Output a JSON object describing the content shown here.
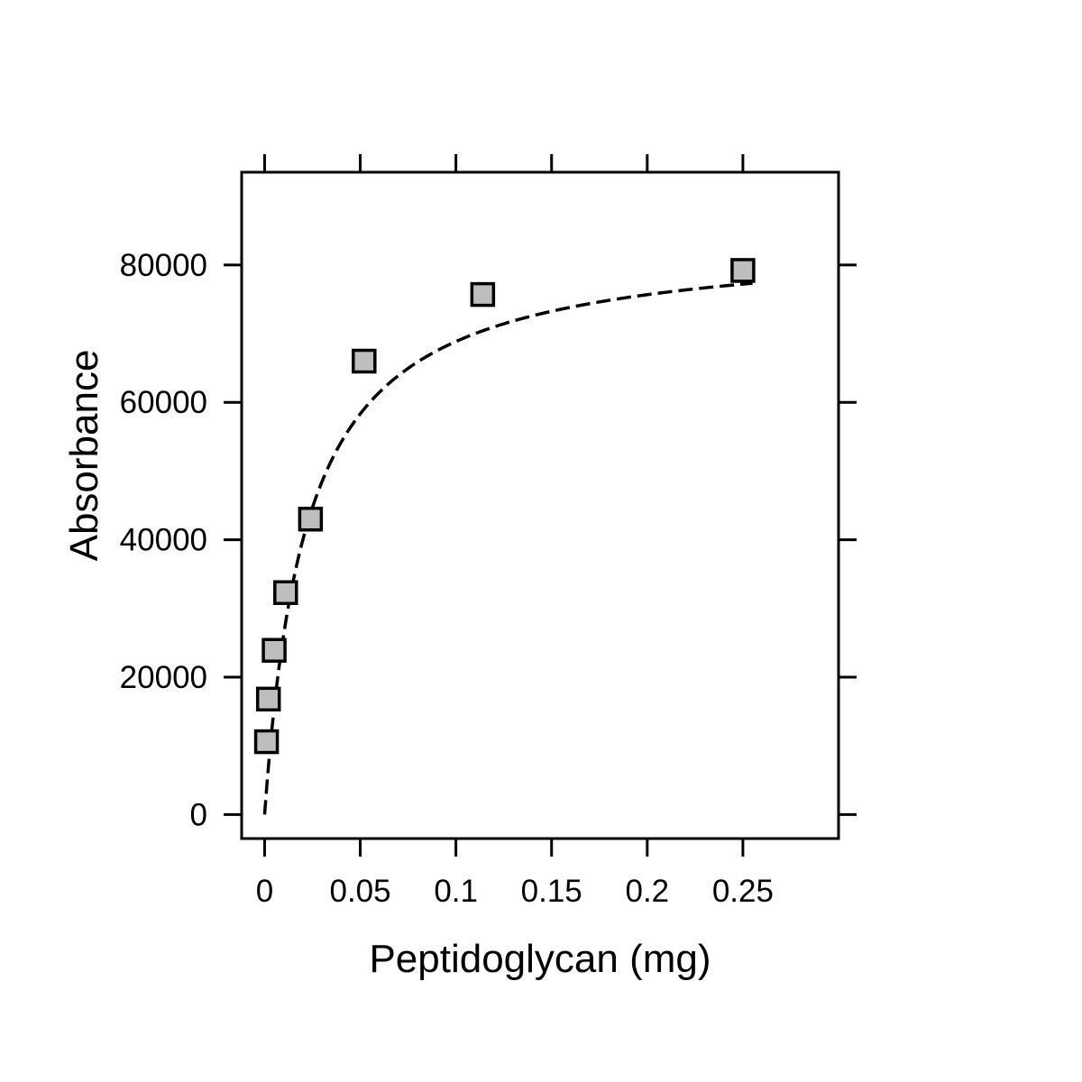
{
  "chart_data": {
    "type": "scatter",
    "title": "",
    "xlabel": "Peptidoglycan (mg)",
    "ylabel": "Absorbance",
    "xlim": [
      -0.012,
      0.3
    ],
    "ylim": [
      -3500,
      93500
    ],
    "x_ticks": [
      0,
      0.05,
      0.1,
      0.15,
      0.2,
      0.25
    ],
    "x_tick_labels": [
      "0",
      "0.05",
      "0.1",
      "0.15",
      "0.2",
      "0.25"
    ],
    "y_ticks": [
      0,
      20000,
      40000,
      60000,
      80000
    ],
    "y_tick_labels": [
      "0",
      "20000",
      "40000",
      "60000",
      "80000"
    ],
    "grid": false,
    "legend": "none",
    "series": [
      {
        "type": "scatter",
        "marker": "square",
        "fill": "#bebebe",
        "stroke": "#000000",
        "x": [
          0.001,
          0.002,
          0.005,
          0.011,
          0.024,
          0.052,
          0.114,
          0.25
        ],
        "y": [
          10600,
          16800,
          23900,
          32300,
          43000,
          66000,
          75700,
          79200
        ]
      },
      {
        "type": "line",
        "style": "dashed",
        "stroke": "#000000",
        "model": "saturation",
        "vmax": 84000,
        "km": 0.022,
        "x_range": [
          0,
          0.255
        ]
      }
    ]
  }
}
